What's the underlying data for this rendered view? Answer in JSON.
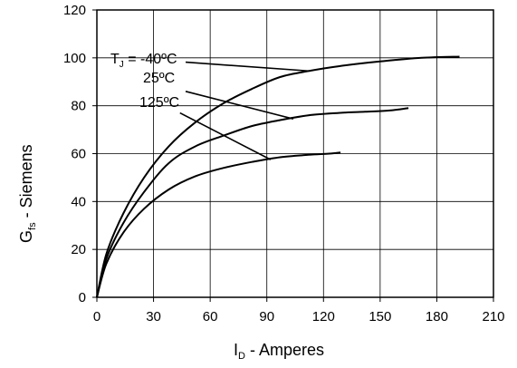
{
  "chart_data": {
    "type": "line",
    "xlabel": {
      "main": "I",
      "sub": "D",
      "rest": " - Amperes"
    },
    "ylabel": {
      "main": "G",
      "sub": "fs",
      "rest": " - Siemens"
    },
    "xlim": [
      0,
      210
    ],
    "ylim": [
      0,
      120
    ],
    "xticks": [
      0,
      30,
      60,
      90,
      120,
      150,
      180,
      210
    ],
    "yticks": [
      0,
      20,
      40,
      60,
      80,
      100,
      120
    ],
    "xtick_labels": [
      "0",
      "30",
      "60",
      "90",
      "120",
      "150",
      "180",
      "210"
    ],
    "ytick_labels": [
      "0",
      "20",
      "40",
      "60",
      "80",
      "100",
      "120"
    ],
    "grid": true,
    "series": [
      {
        "name": "-40ºC",
        "x": [
          0,
          5,
          14,
          25,
          38,
          52,
          67,
          82,
          97,
          112,
          128,
          150,
          172,
          192
        ],
        "y": [
          0,
          18,
          35,
          50,
          63,
          73,
          81,
          87,
          92,
          94.5,
          96.5,
          98.5,
          100,
          100.5
        ]
      },
      {
        "name": "25ºC",
        "x": [
          0,
          5,
          14,
          25,
          38,
          52,
          67,
          82,
          97,
          112,
          128,
          142,
          155,
          165
        ],
        "y": [
          0,
          16,
          31,
          44,
          56,
          63,
          67.5,
          71.5,
          74,
          76,
          77,
          77.5,
          78,
          79
        ]
      },
      {
        "name": "125ºC",
        "x": [
          0,
          5,
          14,
          25,
          38,
          52,
          67,
          82,
          97,
          112,
          123,
          129
        ],
        "y": [
          0,
          14,
          27,
          37,
          45,
          50.5,
          54,
          56.5,
          58.5,
          59.5,
          60,
          60.5
        ]
      }
    ],
    "annotations": [
      {
        "text": "T",
        "sub": "J",
        "rest": " = -40ºC"
      },
      {
        "text": "25ºC"
      },
      {
        "text": "125ºC"
      }
    ]
  }
}
